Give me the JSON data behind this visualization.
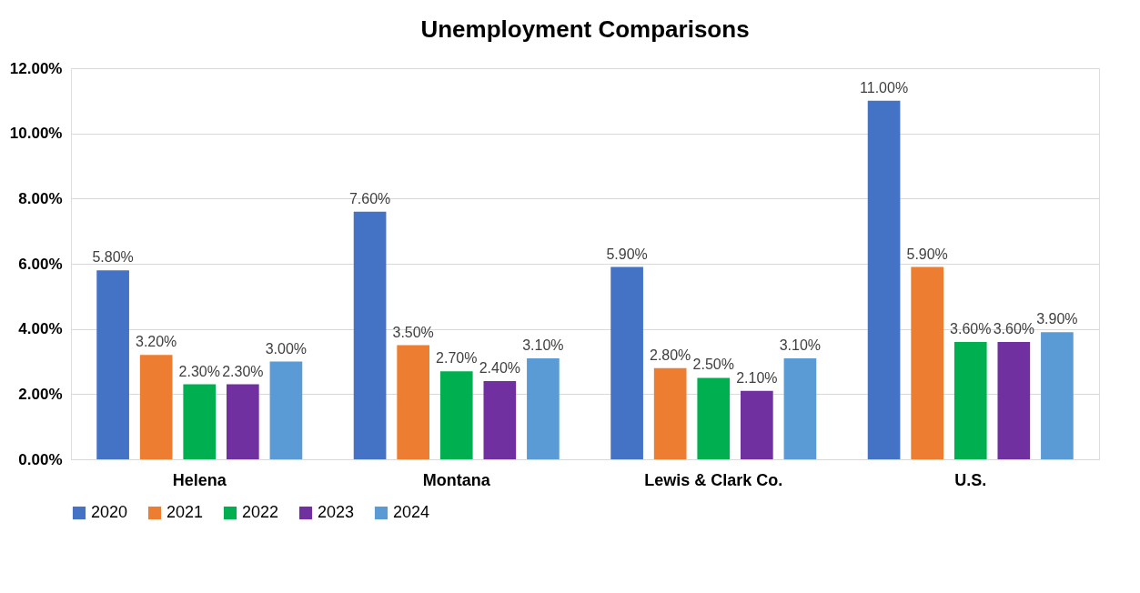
{
  "chart_data": {
    "type": "bar",
    "title": "Unemployment Comparisons",
    "categories": [
      "Helena",
      "Montana",
      "Lewis & Clark Co.",
      "U.S."
    ],
    "series": [
      {
        "name": "2020",
        "color": "#4472c4",
        "values": [
          5.8,
          7.6,
          5.9,
          11.0
        ],
        "value_labels": [
          "5.80%",
          "7.60%",
          "5.90%",
          "11.00%"
        ]
      },
      {
        "name": "2021",
        "color": "#ed7d31",
        "values": [
          3.2,
          3.5,
          2.8,
          5.9
        ],
        "value_labels": [
          "3.20%",
          "3.50%",
          "2.80%",
          "5.90%"
        ]
      },
      {
        "name": "2022",
        "color": "#00b050",
        "values": [
          2.3,
          2.7,
          2.5,
          3.6
        ],
        "value_labels": [
          "2.30%",
          "2.70%",
          "2.50%",
          "3.60%"
        ]
      },
      {
        "name": "2023",
        "color": "#7030a0",
        "values": [
          2.3,
          2.4,
          2.1,
          3.6
        ],
        "value_labels": [
          "2.30%",
          "2.40%",
          "2.10%",
          "3.60%"
        ]
      },
      {
        "name": "2024",
        "color": "#5b9bd5",
        "values": [
          3.0,
          3.1,
          3.1,
          3.9
        ],
        "value_labels": [
          "3.00%",
          "3.10%",
          "3.10%",
          "3.90%"
        ]
      }
    ],
    "ylim": [
      0,
      12
    ],
    "yticks": [
      {
        "value": 0,
        "label": "0.00%"
      },
      {
        "value": 2,
        "label": "2.00%"
      },
      {
        "value": 4,
        "label": "4.00%"
      },
      {
        "value": 6,
        "label": "6.00%"
      },
      {
        "value": 8,
        "label": "8.00%"
      },
      {
        "value": 10,
        "label": "10.00%"
      },
      {
        "value": 12,
        "label": "12.00%"
      }
    ],
    "grid": "y",
    "legend": "bottom"
  }
}
